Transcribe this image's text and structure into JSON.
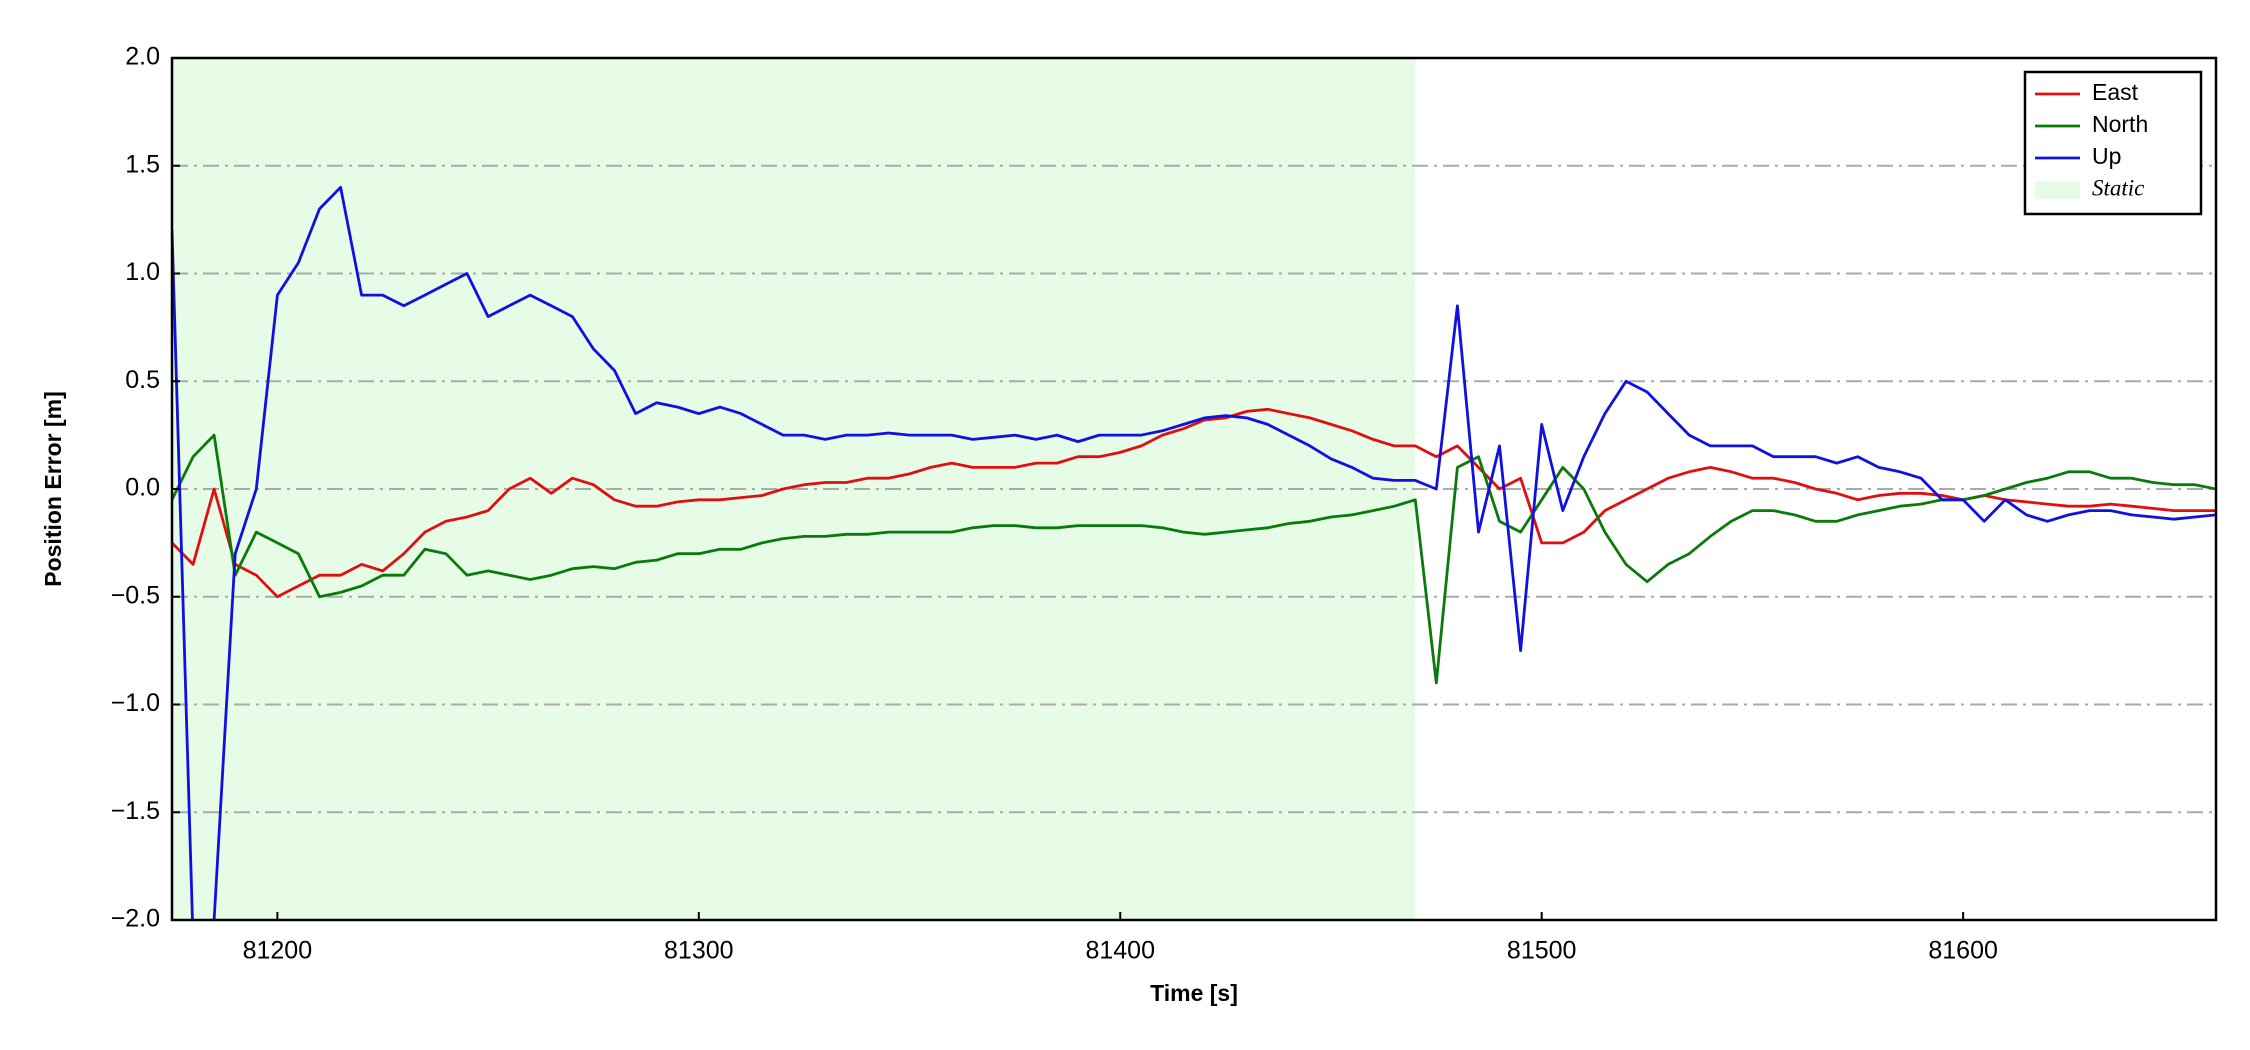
{
  "chart_data": {
    "type": "line",
    "xlabel": "Time [s]",
    "ylabel": "Position Error [m]",
    "xlim": [
      81175,
      81660
    ],
    "ylim": [
      -2.0,
      2.0
    ],
    "xticks": [
      81200,
      81300,
      81400,
      81500,
      81600
    ],
    "yticks": [
      {
        "value": -2.0,
        "label": "−2.0"
      },
      {
        "value": -1.5,
        "label": "−1.5"
      },
      {
        "value": -1.0,
        "label": "−1.0"
      },
      {
        "value": -0.5,
        "label": "−0.5"
      },
      {
        "value": 0.0,
        "label": "0.0"
      },
      {
        "value": 0.5,
        "label": "0.5"
      },
      {
        "value": 1.0,
        "label": "1.0"
      },
      {
        "value": 1.5,
        "label": "1.5"
      },
      {
        "value": 2.0,
        "label": "2.0"
      }
    ],
    "grid": true,
    "legend": "upper right",
    "span": {
      "name": "Static",
      "color": "#e6fce6",
      "x": [
        81175,
        81470
      ]
    },
    "x": [
      81175,
      81180,
      81185,
      81190,
      81195,
      81200,
      81205,
      81210,
      81215,
      81220,
      81225,
      81230,
      81235,
      81240,
      81245,
      81250,
      81255,
      81260,
      81265,
      81270,
      81275,
      81280,
      81285,
      81290,
      81295,
      81300,
      81305,
      81310,
      81315,
      81320,
      81325,
      81330,
      81335,
      81340,
      81345,
      81350,
      81355,
      81360,
      81365,
      81370,
      81375,
      81380,
      81385,
      81390,
      81395,
      81400,
      81405,
      81410,
      81415,
      81420,
      81425,
      81430,
      81435,
      81440,
      81445,
      81450,
      81455,
      81460,
      81465,
      81470,
      81475,
      81480,
      81485,
      81490,
      81495,
      81500,
      81505,
      81510,
      81515,
      81520,
      81525,
      81530,
      81535,
      81540,
      81545,
      81550,
      81555,
      81560,
      81565,
      81570,
      81575,
      81580,
      81585,
      81590,
      81595,
      81600,
      81605,
      81610,
      81615,
      81620,
      81625,
      81630,
      81635,
      81640,
      81645,
      81650,
      81655,
      81660
    ],
    "series": [
      {
        "name": "East",
        "color": "#e01010",
        "values": [
          -0.25,
          -0.35,
          0.0,
          -0.35,
          -0.4,
          -0.5,
          -0.45,
          -0.4,
          -0.4,
          -0.35,
          -0.38,
          -0.3,
          -0.2,
          -0.15,
          -0.13,
          -0.1,
          0.0,
          0.05,
          -0.02,
          0.05,
          0.02,
          -0.05,
          -0.08,
          -0.08,
          -0.06,
          -0.05,
          -0.05,
          -0.04,
          -0.03,
          0.0,
          0.02,
          0.03,
          0.03,
          0.05,
          0.05,
          0.07,
          0.1,
          0.12,
          0.1,
          0.1,
          0.1,
          0.12,
          0.12,
          0.15,
          0.15,
          0.17,
          0.2,
          0.25,
          0.28,
          0.32,
          0.33,
          0.36,
          0.37,
          0.35,
          0.33,
          0.3,
          0.27,
          0.23,
          0.2,
          0.2,
          0.15,
          0.2,
          0.1,
          0.0,
          0.05,
          -0.25,
          -0.25,
          -0.2,
          -0.1,
          -0.05,
          0.0,
          0.05,
          0.08,
          0.1,
          0.08,
          0.05,
          0.05,
          0.03,
          0.0,
          -0.02,
          -0.05,
          -0.03,
          -0.02,
          -0.02,
          -0.03,
          -0.05,
          -0.03,
          -0.05,
          -0.06,
          -0.07,
          -0.08,
          -0.08,
          -0.07,
          -0.08,
          -0.09,
          -0.1,
          -0.1,
          -0.1
        ]
      },
      {
        "name": "North",
        "color": "#0a7a0a",
        "values": [
          -0.05,
          0.15,
          0.25,
          -0.4,
          -0.2,
          -0.25,
          -0.3,
          -0.5,
          -0.48,
          -0.45,
          -0.4,
          -0.4,
          -0.28,
          -0.3,
          -0.4,
          -0.38,
          -0.4,
          -0.42,
          -0.4,
          -0.37,
          -0.36,
          -0.37,
          -0.34,
          -0.33,
          -0.3,
          -0.3,
          -0.28,
          -0.28,
          -0.25,
          -0.23,
          -0.22,
          -0.22,
          -0.21,
          -0.21,
          -0.2,
          -0.2,
          -0.2,
          -0.2,
          -0.18,
          -0.17,
          -0.17,
          -0.18,
          -0.18,
          -0.17,
          -0.17,
          -0.17,
          -0.17,
          -0.18,
          -0.2,
          -0.21,
          -0.2,
          -0.19,
          -0.18,
          -0.16,
          -0.15,
          -0.13,
          -0.12,
          -0.1,
          -0.08,
          -0.05,
          -0.9,
          0.1,
          0.15,
          -0.15,
          -0.2,
          -0.05,
          0.1,
          0.0,
          -0.2,
          -0.35,
          -0.43,
          -0.35,
          -0.3,
          -0.22,
          -0.15,
          -0.1,
          -0.1,
          -0.12,
          -0.15,
          -0.15,
          -0.12,
          -0.1,
          -0.08,
          -0.07,
          -0.05,
          -0.05,
          -0.03,
          0.0,
          0.03,
          0.05,
          0.08,
          0.08,
          0.05,
          0.05,
          0.03,
          0.02,
          0.02,
          0.0
        ]
      },
      {
        "name": "Up",
        "color": "#1010e0",
        "values": [
          1.2,
          -2.1,
          -2.0,
          -0.3,
          0.0,
          0.9,
          1.05,
          1.3,
          1.4,
          0.9,
          0.9,
          0.85,
          0.9,
          0.95,
          1.0,
          0.8,
          0.85,
          0.9,
          0.85,
          0.8,
          0.65,
          0.55,
          0.35,
          0.4,
          0.38,
          0.35,
          0.38,
          0.35,
          0.3,
          0.25,
          0.25,
          0.23,
          0.25,
          0.25,
          0.26,
          0.25,
          0.25,
          0.25,
          0.23,
          0.24,
          0.25,
          0.23,
          0.25,
          0.22,
          0.25,
          0.25,
          0.25,
          0.27,
          0.3,
          0.33,
          0.34,
          0.33,
          0.3,
          0.25,
          0.2,
          0.14,
          0.1,
          0.05,
          0.04,
          0.04,
          0.0,
          0.85,
          -0.2,
          0.2,
          -0.75,
          0.3,
          -0.1,
          0.15,
          0.35,
          0.5,
          0.45,
          0.35,
          0.25,
          0.2,
          0.2,
          0.2,
          0.15,
          0.15,
          0.15,
          0.12,
          0.15,
          0.1,
          0.08,
          0.05,
          -0.05,
          -0.05,
          -0.15,
          -0.05,
          -0.12,
          -0.15,
          -0.12,
          -0.1,
          -0.1,
          -0.12,
          -0.13,
          -0.14,
          -0.13,
          -0.12
        ]
      }
    ]
  }
}
